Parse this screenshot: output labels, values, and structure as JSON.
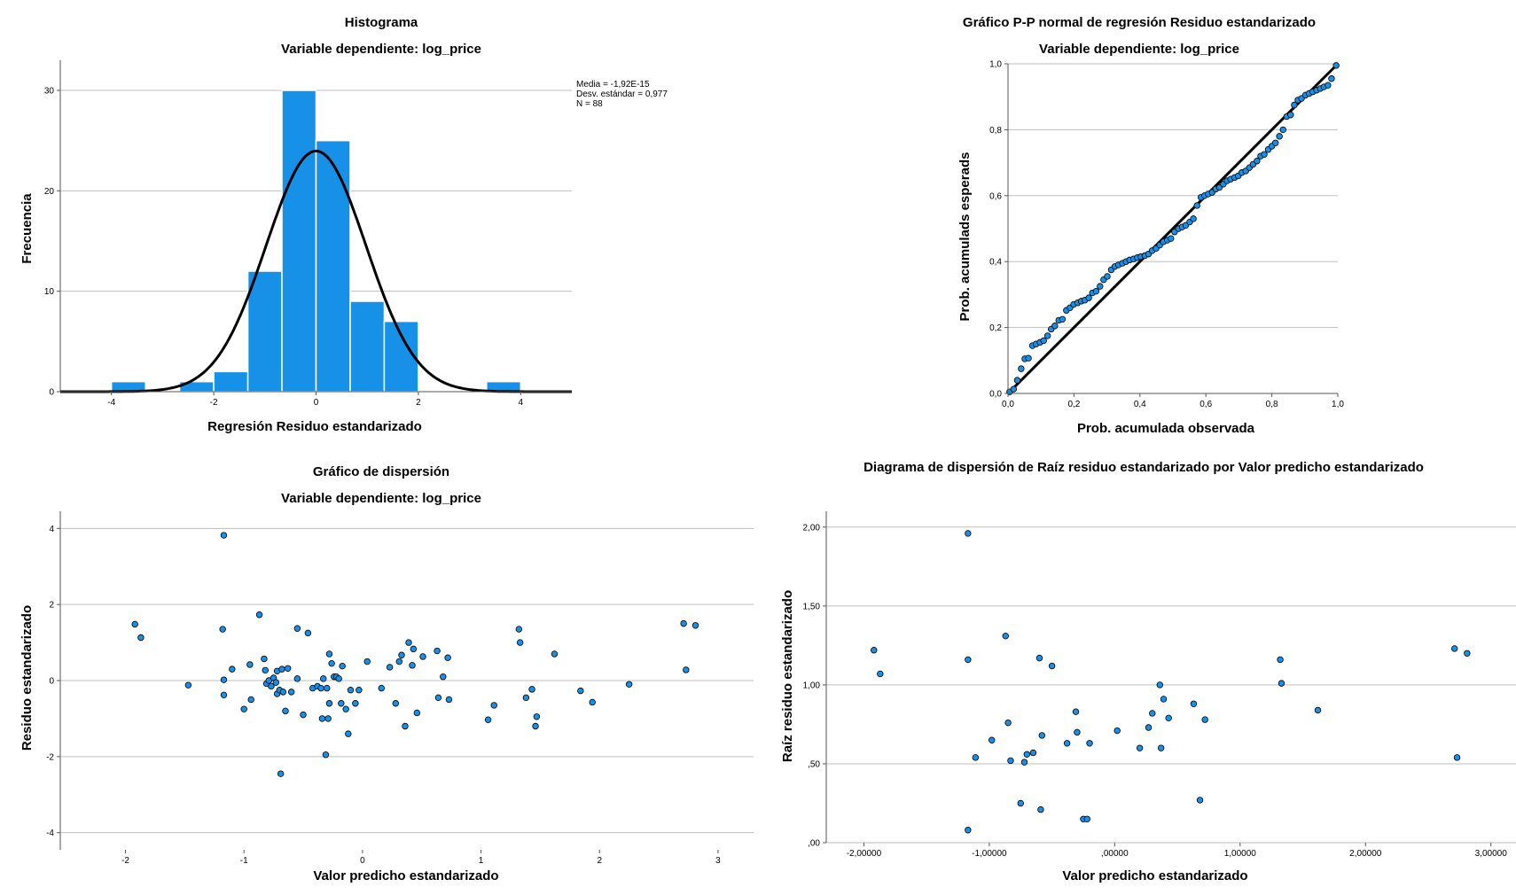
{
  "chart_data": [
    {
      "type": "bar",
      "id": "hist",
      "title": "Histograma",
      "subtitle": "Variable dependiente: log_price",
      "xlabel": "Regresión Residuo estandarizado",
      "ylabel": "Frecuencia",
      "xlim": [
        -5.0,
        5.0
      ],
      "ylim": [
        0,
        33
      ],
      "xticks": [
        {
          "v": -4,
          "label": "-4"
        },
        {
          "v": -2,
          "label": "-2"
        },
        {
          "v": 0,
          "label": "0"
        },
        {
          "v": 2,
          "label": "2"
        },
        {
          "v": 4,
          "label": "4"
        }
      ],
      "yticks": [
        {
          "v": 0,
          "label": "0"
        },
        {
          "v": 10,
          "label": "10"
        },
        {
          "v": 20,
          "label": "20"
        },
        {
          "v": 30,
          "label": "30"
        }
      ],
      "grid": true,
      "bin_width": 0.667,
      "bins": [
        {
          "start": -4.0,
          "count": 1
        },
        {
          "start": -2.667,
          "count": 1
        },
        {
          "start": -2.0,
          "count": 2
        },
        {
          "start": -1.333,
          "count": 12
        },
        {
          "start": -0.667,
          "count": 30
        },
        {
          "start": 0.0,
          "count": 25
        },
        {
          "start": 0.667,
          "count": 9
        },
        {
          "start": 1.333,
          "count": 7
        },
        {
          "start": 3.333,
          "count": 1
        }
      ],
      "normal_curve": {
        "mean": -1.92e-15,
        "sd": 0.977,
        "n": 88
      },
      "stats_lines": [
        "Media = -1,92E-15",
        "Desv. estándar = 0,977",
        "N = 88"
      ]
    },
    {
      "type": "scatter",
      "id": "pp",
      "title": "Gráfico P-P normal de regresión Residuo estandarizado",
      "subtitle": "Variable dependiente: log_price",
      "xlabel": "Prob. acumulada observada",
      "ylabel": "Prob. acumulads esperads",
      "xlim": [
        0,
        1
      ],
      "ylim": [
        0,
        1
      ],
      "xticks": [
        {
          "v": 0,
          "label": "0,0"
        },
        {
          "v": 0.2,
          "label": "0,2"
        },
        {
          "v": 0.4,
          "label": "0,4"
        },
        {
          "v": 0.6,
          "label": "0,6"
        },
        {
          "v": 0.8,
          "label": "0,8"
        },
        {
          "v": 1.0,
          "label": "1,0"
        }
      ],
      "yticks": [
        {
          "v": 0,
          "label": "0,0"
        },
        {
          "v": 0.2,
          "label": "0,2"
        },
        {
          "v": 0.4,
          "label": "0,4"
        },
        {
          "v": 0.6,
          "label": "0,6"
        },
        {
          "v": 0.8,
          "label": "0,8"
        },
        {
          "v": 1.0,
          "label": "1,0"
        }
      ],
      "grid": true,
      "reference_line": [
        [
          0,
          0
        ],
        [
          1,
          1
        ]
      ],
      "points": [
        [
          0.005,
          0.005
        ],
        [
          0.017,
          0.013
        ],
        [
          0.028,
          0.04
        ],
        [
          0.04,
          0.075
        ],
        [
          0.051,
          0.105
        ],
        [
          0.062,
          0.107
        ],
        [
          0.074,
          0.145
        ],
        [
          0.085,
          0.15
        ],
        [
          0.097,
          0.155
        ],
        [
          0.108,
          0.16
        ],
        [
          0.12,
          0.175
        ],
        [
          0.131,
          0.195
        ],
        [
          0.142,
          0.205
        ],
        [
          0.154,
          0.222
        ],
        [
          0.165,
          0.225
        ],
        [
          0.177,
          0.252
        ],
        [
          0.188,
          0.26
        ],
        [
          0.199,
          0.27
        ],
        [
          0.211,
          0.275
        ],
        [
          0.222,
          0.28
        ],
        [
          0.233,
          0.283
        ],
        [
          0.245,
          0.29
        ],
        [
          0.256,
          0.305
        ],
        [
          0.267,
          0.31
        ],
        [
          0.279,
          0.325
        ],
        [
          0.29,
          0.345
        ],
        [
          0.301,
          0.355
        ],
        [
          0.313,
          0.375
        ],
        [
          0.324,
          0.385
        ],
        [
          0.335,
          0.39
        ],
        [
          0.347,
          0.395
        ],
        [
          0.358,
          0.4
        ],
        [
          0.369,
          0.405
        ],
        [
          0.381,
          0.408
        ],
        [
          0.392,
          0.412
        ],
        [
          0.403,
          0.415
        ],
        [
          0.415,
          0.418
        ],
        [
          0.426,
          0.423
        ],
        [
          0.437,
          0.433
        ],
        [
          0.449,
          0.44
        ],
        [
          0.46,
          0.45
        ],
        [
          0.471,
          0.46
        ],
        [
          0.483,
          0.465
        ],
        [
          0.494,
          0.47
        ],
        [
          0.505,
          0.49
        ],
        [
          0.517,
          0.5
        ],
        [
          0.528,
          0.505
        ],
        [
          0.539,
          0.51
        ],
        [
          0.551,
          0.52
        ],
        [
          0.562,
          0.53
        ],
        [
          0.573,
          0.57
        ],
        [
          0.585,
          0.595
        ],
        [
          0.596,
          0.6
        ],
        [
          0.607,
          0.605
        ],
        [
          0.619,
          0.61
        ],
        [
          0.63,
          0.62
        ],
        [
          0.641,
          0.625
        ],
        [
          0.653,
          0.635
        ],
        [
          0.664,
          0.645
        ],
        [
          0.675,
          0.65
        ],
        [
          0.687,
          0.655
        ],
        [
          0.698,
          0.66
        ],
        [
          0.709,
          0.67
        ],
        [
          0.721,
          0.675
        ],
        [
          0.732,
          0.685
        ],
        [
          0.743,
          0.695
        ],
        [
          0.755,
          0.705
        ],
        [
          0.766,
          0.72
        ],
        [
          0.777,
          0.725
        ],
        [
          0.789,
          0.74
        ],
        [
          0.8,
          0.75
        ],
        [
          0.811,
          0.76
        ],
        [
          0.823,
          0.78
        ],
        [
          0.834,
          0.8
        ],
        [
          0.845,
          0.84
        ],
        [
          0.857,
          0.845
        ],
        [
          0.868,
          0.875
        ],
        [
          0.879,
          0.89
        ],
        [
          0.89,
          0.895
        ],
        [
          0.902,
          0.905
        ],
        [
          0.913,
          0.91
        ],
        [
          0.924,
          0.915
        ],
        [
          0.936,
          0.92
        ],
        [
          0.947,
          0.925
        ],
        [
          0.958,
          0.93
        ],
        [
          0.97,
          0.935
        ],
        [
          0.981,
          0.955
        ],
        [
          0.995,
          0.995
        ]
      ]
    },
    {
      "type": "scatter",
      "id": "scatter1",
      "title": "Gráfico de dispersión",
      "subtitle": "Variable dependiente: log_price",
      "xlabel": "Valor predicho estandarizado",
      "ylabel": "Residuo estandarizado",
      "xlim": [
        -2.55,
        3.3
      ],
      "ylim": [
        -4.45,
        4.45
      ],
      "xticks": [
        {
          "v": -2,
          "label": "-2"
        },
        {
          "v": -1,
          "label": "-1"
        },
        {
          "v": 0,
          "label": "0"
        },
        {
          "v": 1,
          "label": "1"
        },
        {
          "v": 2,
          "label": "2"
        },
        {
          "v": 3,
          "label": "3"
        }
      ],
      "yticks": [
        {
          "v": -4,
          "label": "-4"
        },
        {
          "v": -2,
          "label": "-2"
        },
        {
          "v": 0,
          "label": "0"
        },
        {
          "v": 2,
          "label": "2"
        },
        {
          "v": 4,
          "label": "4"
        }
      ],
      "grid": true,
      "points": [
        [
          -1.92,
          1.48
        ],
        [
          -1.87,
          1.13
        ],
        [
          -1.47,
          -0.12
        ],
        [
          -1.18,
          1.35
        ],
        [
          -1.17,
          3.82
        ],
        [
          -1.17,
          0.02
        ],
        [
          -1.17,
          -0.38
        ],
        [
          -1.1,
          0.3
        ],
        [
          -1.0,
          -0.75
        ],
        [
          -0.95,
          0.42
        ],
        [
          -0.94,
          -0.5
        ],
        [
          -0.87,
          1.73
        ],
        [
          -0.83,
          0.57
        ],
        [
          -0.82,
          0.27
        ],
        [
          -0.81,
          -0.08
        ],
        [
          -0.79,
          0.0
        ],
        [
          -0.77,
          -0.15
        ],
        [
          -0.75,
          0.07
        ],
        [
          -0.73,
          -0.05
        ],
        [
          -0.72,
          0.25
        ],
        [
          -0.72,
          -0.35
        ],
        [
          -0.7,
          -0.25
        ],
        [
          -0.69,
          -2.45
        ],
        [
          -0.68,
          0.3
        ],
        [
          -0.67,
          -0.3
        ],
        [
          -0.65,
          -0.8
        ],
        [
          -0.63,
          0.32
        ],
        [
          -0.6,
          -0.3
        ],
        [
          -0.55,
          1.37
        ],
        [
          -0.55,
          0.05
        ],
        [
          -0.5,
          -0.9
        ],
        [
          -0.46,
          1.25
        ],
        [
          -0.42,
          -0.2
        ],
        [
          -0.38,
          -0.15
        ],
        [
          -0.35,
          -0.2
        ],
        [
          -0.34,
          -1.0
        ],
        [
          -0.33,
          0.05
        ],
        [
          -0.31,
          -1.95
        ],
        [
          -0.3,
          -0.2
        ],
        [
          -0.29,
          -1.0
        ],
        [
          -0.28,
          -0.6
        ],
        [
          -0.28,
          0.7
        ],
        [
          -0.26,
          0.45
        ],
        [
          -0.24,
          0.1
        ],
        [
          -0.22,
          0.1
        ],
        [
          -0.2,
          0.05
        ],
        [
          -0.18,
          -0.6
        ],
        [
          -0.17,
          0.38
        ],
        [
          -0.14,
          -0.75
        ],
        [
          -0.12,
          -1.4
        ],
        [
          -0.1,
          -0.25
        ],
        [
          -0.06,
          -0.6
        ],
        [
          -0.03,
          -0.25
        ],
        [
          0.04,
          0.5
        ],
        [
          0.16,
          -0.2
        ],
        [
          0.23,
          0.35
        ],
        [
          0.28,
          -0.6
        ],
        [
          0.31,
          0.5
        ],
        [
          0.33,
          0.67
        ],
        [
          0.36,
          -1.2
        ],
        [
          0.39,
          1.0
        ],
        [
          0.42,
          0.4
        ],
        [
          0.43,
          0.83
        ],
        [
          0.46,
          -0.85
        ],
        [
          0.51,
          0.63
        ],
        [
          0.63,
          0.78
        ],
        [
          0.64,
          -0.45
        ],
        [
          0.68,
          0.1
        ],
        [
          0.72,
          0.6
        ],
        [
          0.73,
          -0.5
        ],
        [
          1.06,
          -1.03
        ],
        [
          1.11,
          -0.65
        ],
        [
          1.32,
          1.35
        ],
        [
          1.33,
          1.0
        ],
        [
          1.38,
          -0.45
        ],
        [
          1.43,
          -0.23
        ],
        [
          1.46,
          -1.2
        ],
        [
          1.47,
          -0.95
        ],
        [
          1.62,
          0.7
        ],
        [
          1.84,
          -0.27
        ],
        [
          1.94,
          -0.57
        ],
        [
          2.25,
          -0.1
        ],
        [
          2.71,
          1.5
        ],
        [
          2.73,
          0.28
        ],
        [
          2.81,
          1.45
        ]
      ]
    },
    {
      "type": "scatter",
      "id": "scatter2",
      "title": "Diagrama de dispersión de Raíz residuo estandarizado por Valor predicho estandarizado",
      "subtitle": "",
      "xlabel": "Valor predicho estandarizado",
      "ylabel": "Raíz residuo estandarizado",
      "xlim": [
        -2.3,
        3.2
      ],
      "ylim": [
        0,
        2.1
      ],
      "xticks": [
        {
          "v": -2,
          "label": "-2,00000"
        },
        {
          "v": -1,
          "label": "-1,00000"
        },
        {
          "v": 0,
          "label": ",00000"
        },
        {
          "v": 1,
          "label": "1,00000"
        },
        {
          "v": 2,
          "label": "2,00000"
        },
        {
          "v": 3,
          "label": "3,00000"
        }
      ],
      "yticks": [
        {
          "v": 0,
          "label": ",00"
        },
        {
          "v": 0.5,
          "label": ",50"
        },
        {
          "v": 1.0,
          "label": "1,00"
        },
        {
          "v": 1.5,
          "label": "1,50"
        },
        {
          "v": 2.0,
          "label": "2,00"
        }
      ],
      "grid": true,
      "points": [
        [
          -1.92,
          1.22
        ],
        [
          -1.87,
          1.07
        ],
        [
          -1.17,
          1.96
        ],
        [
          -1.17,
          1.16
        ],
        [
          -1.17,
          0.08
        ],
        [
          -1.11,
          0.54
        ],
        [
          -0.98,
          0.65
        ],
        [
          -0.87,
          1.31
        ],
        [
          -0.85,
          0.76
        ],
        [
          -0.83,
          0.52
        ],
        [
          -0.75,
          0.25
        ],
        [
          -0.72,
          0.51
        ],
        [
          -0.7,
          0.56
        ],
        [
          -0.65,
          0.57
        ],
        [
          -0.6,
          1.17
        ],
        [
          -0.59,
          0.21
        ],
        [
          -0.58,
          0.68
        ],
        [
          -0.5,
          1.12
        ],
        [
          -0.38,
          0.63
        ],
        [
          -0.31,
          0.83
        ],
        [
          -0.3,
          0.7
        ],
        [
          -0.25,
          0.15
        ],
        [
          -0.22,
          0.15
        ],
        [
          -0.2,
          0.63
        ],
        [
          0.02,
          0.71
        ],
        [
          0.2,
          0.6
        ],
        [
          0.27,
          0.73
        ],
        [
          0.3,
          0.82
        ],
        [
          0.36,
          1.0
        ],
        [
          0.37,
          0.6
        ],
        [
          0.39,
          0.91
        ],
        [
          0.43,
          0.79
        ],
        [
          0.63,
          0.88
        ],
        [
          0.68,
          0.27
        ],
        [
          0.72,
          0.78
        ],
        [
          1.32,
          1.16
        ],
        [
          1.33,
          1.01
        ],
        [
          1.62,
          0.84
        ],
        [
          2.71,
          1.23
        ],
        [
          2.73,
          0.54
        ],
        [
          2.81,
          1.2
        ]
      ]
    }
  ]
}
